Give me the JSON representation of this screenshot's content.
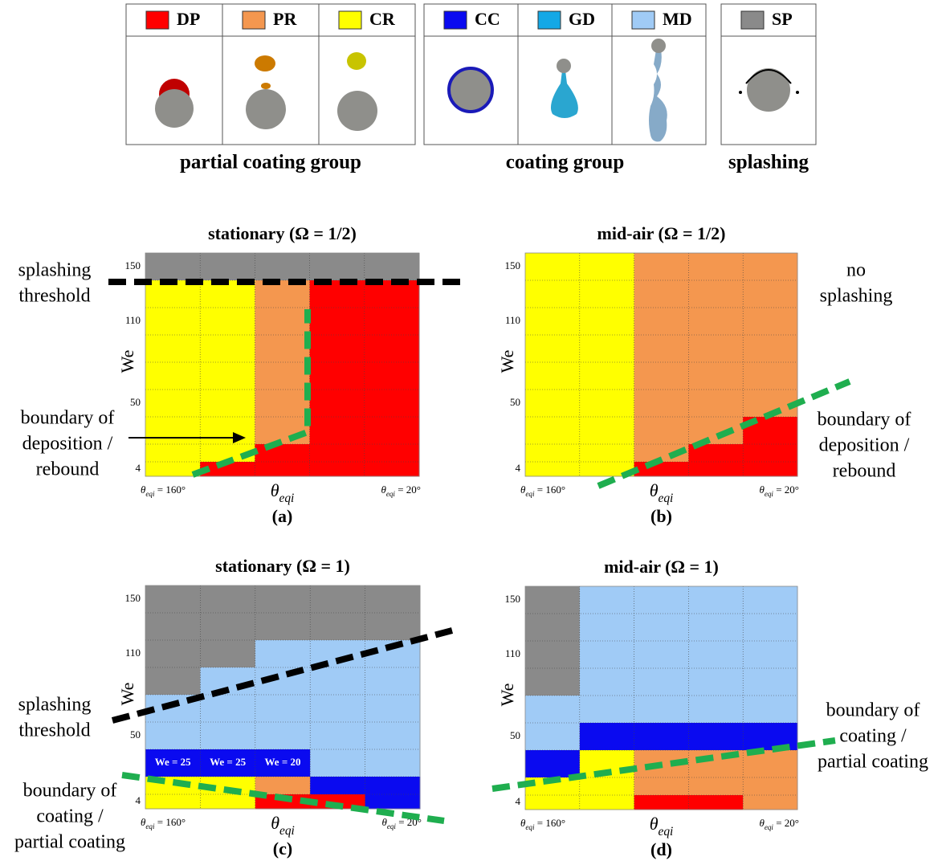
{
  "legend": {
    "groups": [
      {
        "label": "partial coating group",
        "items": [
          {
            "code": "DP",
            "color": "#ff0000"
          },
          {
            "code": "PR",
            "color": "#f4974f"
          },
          {
            "code": "CR",
            "color": "#ffff00"
          }
        ]
      },
      {
        "label": "coating group",
        "items": [
          {
            "code": "CC",
            "color": "#0a0af0"
          },
          {
            "code": "GD",
            "color": "#14a8e6"
          },
          {
            "code": "MD",
            "color": "#a0cbf6"
          }
        ]
      },
      {
        "label": "splashing",
        "items": [
          {
            "code": "SP",
            "color": "#8a8a8a"
          }
        ]
      }
    ]
  },
  "chart_data": [
    {
      "type": "heatmap",
      "title": "stationary (Ω = 1/2)",
      "caption": "(a)",
      "y_label": "We",
      "y_categories": [
        "150",
        null,
        "110",
        null,
        null,
        "50",
        null,
        null,
        "4"
      ],
      "x_label_left": {
        "symbol": "θ",
        "subscript": "eqi",
        "suffix": " = 160°"
      },
      "x_label_center": {
        "symbol": "θ",
        "subscript": "eqi"
      },
      "x_label_right": {
        "symbol": "θ",
        "subscript": "eqi",
        "suffix": " = 20°"
      },
      "cells": [
        [
          "SP",
          "SP",
          "SP",
          "SP",
          "SP"
        ],
        [
          "CR",
          "CR",
          "PR",
          "DP",
          "DP"
        ],
        [
          "CR",
          "CR",
          "PR",
          "DP",
          "DP"
        ],
        [
          "CR",
          "CR",
          "PR",
          "DP",
          "DP"
        ],
        [
          "CR",
          "CR",
          "PR",
          "DP",
          "DP"
        ],
        [
          "CR",
          "CR",
          "PR",
          "DP",
          "DP"
        ],
        [
          "CR",
          "CR",
          "PR",
          "DP",
          "DP"
        ],
        [
          "CR",
          "CR",
          "DP",
          "DP",
          "DP"
        ],
        [
          "CR",
          "DP",
          "DP",
          "DP",
          "DP"
        ]
      ],
      "annotations": [
        [
          "splashing",
          "threshold"
        ],
        [
          "boundary of",
          "deposition /",
          "rebound"
        ]
      ]
    },
    {
      "type": "heatmap",
      "title": "mid-air (Ω = 1/2)",
      "caption": "(b)",
      "y_label": "We",
      "y_categories": [
        "150",
        null,
        "110",
        null,
        null,
        "50",
        null,
        null,
        "4"
      ],
      "x_label_left": {
        "symbol": "θ",
        "subscript": "eqi",
        "suffix": " = 160°"
      },
      "x_label_center": {
        "symbol": "θ",
        "subscript": "eqi"
      },
      "x_label_right": {
        "symbol": "θ",
        "subscript": "eqi",
        "suffix": " = 20°"
      },
      "cells": [
        [
          "CR",
          "CR",
          "PR",
          "PR",
          "PR"
        ],
        [
          "CR",
          "CR",
          "PR",
          "PR",
          "PR"
        ],
        [
          "CR",
          "CR",
          "PR",
          "PR",
          "PR"
        ],
        [
          "CR",
          "CR",
          "PR",
          "PR",
          "PR"
        ],
        [
          "CR",
          "CR",
          "PR",
          "PR",
          "PR"
        ],
        [
          "CR",
          "CR",
          "PR",
          "PR",
          "PR"
        ],
        [
          "CR",
          "CR",
          "PR",
          "PR",
          "DP"
        ],
        [
          "CR",
          "CR",
          "PR",
          "DP",
          "DP"
        ],
        [
          "CR",
          "CR",
          "DP",
          "DP",
          "DP"
        ]
      ],
      "annotations": [
        [
          "no",
          "splashing"
        ],
        [
          "boundary of",
          "deposition /",
          "rebound"
        ]
      ]
    },
    {
      "type": "heatmap",
      "title": "stationary (Ω = 1)",
      "caption": "(c)",
      "y_label": "We",
      "y_categories": [
        "150",
        null,
        "110",
        null,
        null,
        "50",
        null,
        null,
        "4"
      ],
      "x_label_left": {
        "symbol": "θ",
        "subscript": "eqi",
        "suffix": " = 160°"
      },
      "x_label_center": {
        "symbol": "θ",
        "subscript": "eqi"
      },
      "x_label_right": {
        "symbol": "θ",
        "subscript": "eqi",
        "suffix": " = 20°"
      },
      "cells": [
        [
          "SP",
          "SP",
          "SP",
          "SP",
          "SP"
        ],
        [
          "SP",
          "SP",
          "SP",
          "SP",
          "SP"
        ],
        [
          "SP",
          "SP",
          "MD",
          "MD",
          "MD"
        ],
        [
          "SP",
          "MD",
          "MD",
          "MD",
          "MD"
        ],
        [
          "MD",
          "MD",
          "MD",
          "MD",
          "MD"
        ],
        [
          "MD",
          "MD",
          "MD",
          "MD",
          "MD"
        ],
        [
          "CC",
          "CC",
          "CC",
          "MD",
          "MD"
        ],
        [
          "CR",
          "CR",
          "PR",
          "CC",
          "CC"
        ],
        [
          "CR",
          "CR",
          "DP",
          "DP",
          "CC"
        ]
      ],
      "cell_labels": [
        "We = 25",
        "We = 25",
        "We = 20"
      ],
      "annotations": [
        [
          "splashing",
          "threshold"
        ],
        [
          "boundary of",
          "coating /",
          "partial coating"
        ]
      ]
    },
    {
      "type": "heatmap",
      "title": "mid-air (Ω = 1)",
      "caption": "(d)",
      "y_label": "We",
      "y_categories": [
        "150",
        null,
        "110",
        null,
        null,
        "50",
        null,
        null,
        "4"
      ],
      "x_label_left": {
        "symbol": "θ",
        "subscript": "eqi",
        "suffix": " = 160°"
      },
      "x_label_center": {
        "symbol": "θ",
        "subscript": "eqi"
      },
      "x_label_right": {
        "symbol": "θ",
        "subscript": "eqi",
        "suffix": " = 20°"
      },
      "cells": [
        [
          "SP",
          "MD",
          "MD",
          "MD",
          "MD"
        ],
        [
          "SP",
          "MD",
          "MD",
          "MD",
          "MD"
        ],
        [
          "SP",
          "MD",
          "MD",
          "MD",
          "MD"
        ],
        [
          "SP",
          "MD",
          "MD",
          "MD",
          "MD"
        ],
        [
          "MD",
          "MD",
          "MD",
          "MD",
          "MD"
        ],
        [
          "MD",
          "CC",
          "CC",
          "CC",
          "CC"
        ],
        [
          "CC",
          "CR",
          "PR",
          "PR",
          "PR"
        ],
        [
          "CR",
          "CR",
          "PR",
          "PR",
          "PR"
        ],
        [
          "CR",
          "CR",
          "DP",
          "DP",
          "PR"
        ]
      ],
      "annotations": [
        [
          "boundary of",
          "coating /",
          "partial coating"
        ]
      ]
    }
  ]
}
